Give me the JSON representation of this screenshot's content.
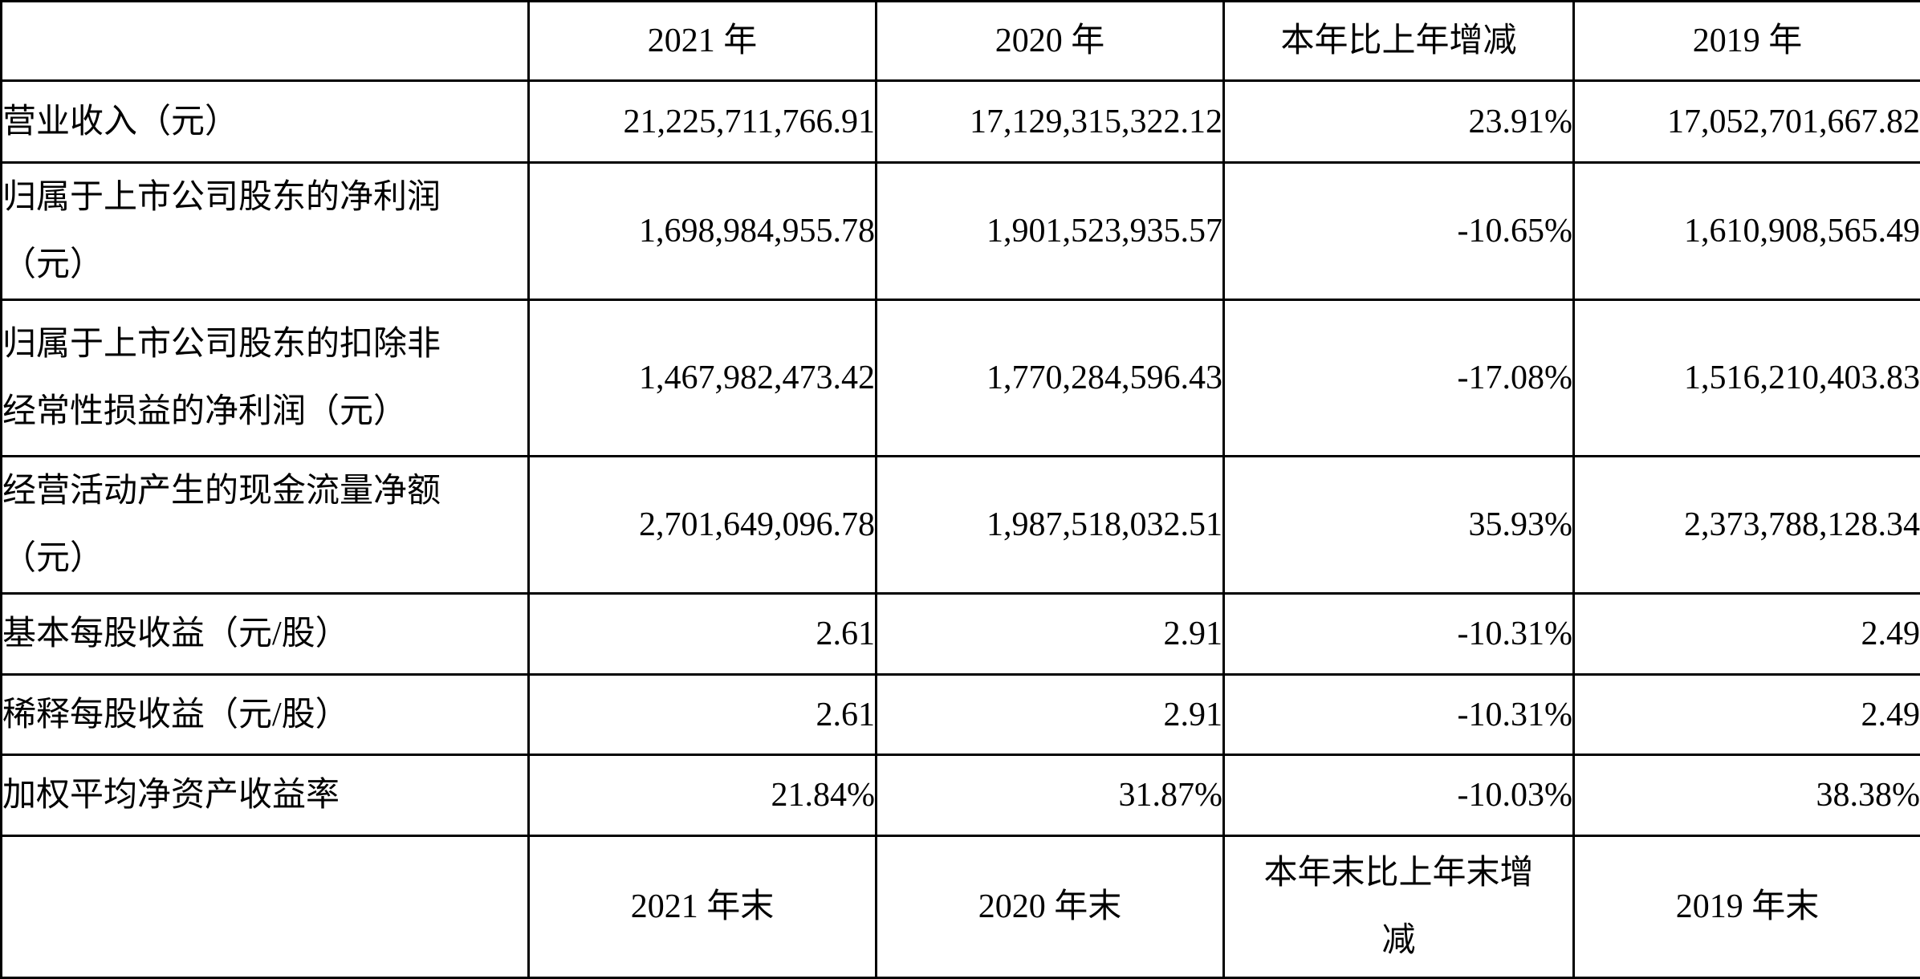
{
  "colors": {
    "header_bg": "#d3d3d3",
    "cell_bg": "#ffffff",
    "border": "#000000",
    "text": "#000000"
  },
  "table": {
    "header_top": {
      "corner": "",
      "c1": "2021 年",
      "c2": "2020 年",
      "c3": "本年比上年增减",
      "c4": "2019 年"
    },
    "rows": [
      {
        "label_line1": "营业收入（元）",
        "label_line2": "",
        "v2021": "21,225,711,766.91",
        "v2020": "17,129,315,322.12",
        "change": "23.91%",
        "v2019": "17,052,701,667.82"
      },
      {
        "label_line1": "归属于上市公司股东的净利润",
        "label_line2": "（元）",
        "v2021": "1,698,984,955.78",
        "v2020": "1,901,523,935.57",
        "change": "-10.65%",
        "v2019": "1,610,908,565.49"
      },
      {
        "label_line1": "归属于上市公司股东的扣除非",
        "label_line2": "经常性损益的净利润（元）",
        "v2021": "1,467,982,473.42",
        "v2020": "1,770,284,596.43",
        "change": "-17.08%",
        "v2019": "1,516,210,403.83"
      },
      {
        "label_line1": "经营活动产生的现金流量净额",
        "label_line2": "（元）",
        "v2021": "2,701,649,096.78",
        "v2020": "1,987,518,032.51",
        "change": "35.93%",
        "v2019": "2,373,788,128.34"
      },
      {
        "label_line1": "基本每股收益（元/股）",
        "label_line2": "",
        "v2021": "2.61",
        "v2020": "2.91",
        "change": "-10.31%",
        "v2019": "2.49"
      },
      {
        "label_line1": "稀释每股收益（元/股）",
        "label_line2": "",
        "v2021": "2.61",
        "v2020": "2.91",
        "change": "-10.31%",
        "v2019": "2.49"
      },
      {
        "label_line1": "加权平均净资产收益率",
        "label_line2": "",
        "v2021": "21.84%",
        "v2020": "31.87%",
        "change": "-10.03%",
        "v2019": "38.38%"
      }
    ],
    "header_bottom": {
      "corner": "",
      "c1": "2021 年末",
      "c2": "2020 年末",
      "c3_line1": "本年末比上年末增",
      "c3_line2": "减",
      "c4": "2019 年末"
    }
  }
}
